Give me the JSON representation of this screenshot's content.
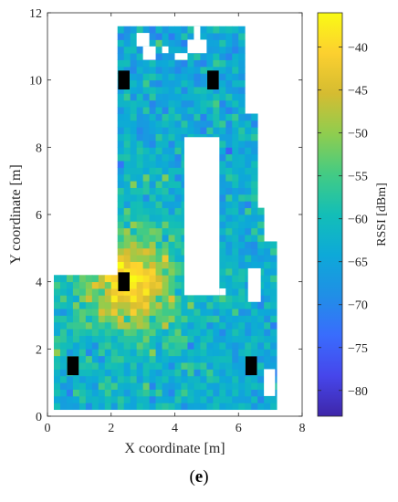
{
  "chart_data": {
    "type": "heatmap",
    "title": "",
    "xlabel": "X coordinate [m]",
    "ylabel": "Y coordinate [m]",
    "xlim": [
      0,
      8
    ],
    "ylim": [
      0,
      12
    ],
    "xticks": [
      "0",
      "2",
      "4",
      "6",
      "8"
    ],
    "yticks": [
      "0",
      "2",
      "4",
      "6",
      "8",
      "10",
      "12"
    ],
    "colorbar": {
      "label": "RSSI [dBm]",
      "range": [
        -83,
        -36
      ],
      "ticks": [
        "-40",
        "-45",
        "-50",
        "-55",
        "-60",
        "-65",
        "-70",
        "-75",
        "-80"
      ],
      "colormap": "parula"
    },
    "cell_size_m": 0.2,
    "baseline_rssi_dBm": -64,
    "coverage_region": [
      {
        "x0": 0.2,
        "x1": 2.2,
        "y0": 0.2,
        "y1": 4.2
      },
      {
        "x0": 2.2,
        "x1": 7.2,
        "y0": 0.2,
        "y1": 4.6
      },
      {
        "x0": 2.2,
        "x1": 6.2,
        "y0": 4.6,
        "y1": 11.6
      },
      {
        "x0": 6.2,
        "x1": 6.6,
        "y0": 4.6,
        "y1": 9.0
      },
      {
        "x0": 6.6,
        "x1": 6.9,
        "y0": 4.6,
        "y1": 6.2
      },
      {
        "x0": 6.6,
        "x1": 7.2,
        "y0": 0.2,
        "y1": 5.2
      }
    ],
    "excluded_regions": [
      {
        "x0": 4.3,
        "x1": 5.4,
        "y0": 3.6,
        "y1": 8.3
      },
      {
        "x0": 5.4,
        "x1": 5.6,
        "y0": 3.6,
        "y1": 3.8
      },
      {
        "x0": 6.3,
        "x1": 6.7,
        "y0": 3.4,
        "y1": 4.4
      },
      {
        "x0": 6.8,
        "x1": 7.15,
        "y0": 0.6,
        "y1": 1.4
      },
      {
        "x0": 2.8,
        "x1": 3.2,
        "y0": 11.0,
        "y1": 11.4
      },
      {
        "x0": 3.0,
        "x1": 3.4,
        "y0": 10.6,
        "y1": 11.0
      },
      {
        "x0": 3.6,
        "x1": 3.8,
        "y0": 10.8,
        "y1": 11.0
      },
      {
        "x0": 4.0,
        "x1": 4.4,
        "y0": 10.6,
        "y1": 10.8
      },
      {
        "x0": 4.4,
        "x1": 5.0,
        "y0": 10.8,
        "y1": 11.2
      },
      {
        "x0": 4.6,
        "x1": 4.8,
        "y0": 11.2,
        "y1": 11.6
      }
    ],
    "access_points": [
      {
        "x": 0.8,
        "y": 1.5
      },
      {
        "x": 6.4,
        "y": 1.5
      },
      {
        "x": 2.4,
        "y": 4.0
      },
      {
        "x": 2.4,
        "y": 10.0
      },
      {
        "x": 5.2,
        "y": 10.0
      }
    ],
    "hotspot": {
      "x": 2.6,
      "y": 4.0,
      "peak_dBm": -43,
      "falloff_m": 0.9
    },
    "secondary_lift": {
      "x": 2.4,
      "y": 4.0,
      "delta_dB": 5,
      "falloff_m": 2.5
    }
  },
  "caption": {
    "open": "(",
    "letter": "e",
    "close": ")"
  }
}
